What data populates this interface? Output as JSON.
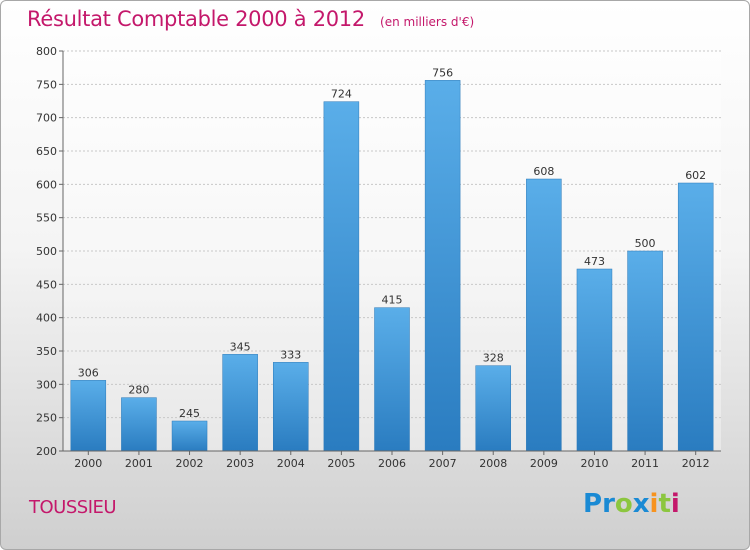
{
  "header": {
    "title": "Résultat Comptable 2000 à 2012",
    "subtitle": "(en milliers d'€)"
  },
  "footer": {
    "place": "TOUSSIEU",
    "logo_letters": [
      {
        "ch": "P",
        "color": "#1a8ad4"
      },
      {
        "ch": "r",
        "color": "#1a8ad4"
      },
      {
        "ch": "o",
        "color": "#8cc63f"
      },
      {
        "ch": "x",
        "color": "#1a8ad4"
      },
      {
        "ch": "i",
        "color": "#f7931e"
      },
      {
        "ch": "t",
        "color": "#8cc63f"
      },
      {
        "ch": "i",
        "color": "#c4186b"
      }
    ]
  },
  "chart_data": {
    "type": "bar",
    "categories": [
      "2000",
      "2001",
      "2002",
      "2003",
      "2004",
      "2005",
      "2006",
      "2007",
      "2008",
      "2009",
      "2010",
      "2011",
      "2012"
    ],
    "values": [
      306,
      280,
      245,
      345,
      333,
      724,
      415,
      756,
      328,
      608,
      473,
      500,
      602
    ],
    "ylim": [
      200,
      800
    ],
    "yticks": [
      200,
      250,
      300,
      350,
      400,
      450,
      500,
      550,
      600,
      650,
      700,
      750,
      800
    ],
    "grid": true,
    "bar_color": "#3a93d6"
  }
}
